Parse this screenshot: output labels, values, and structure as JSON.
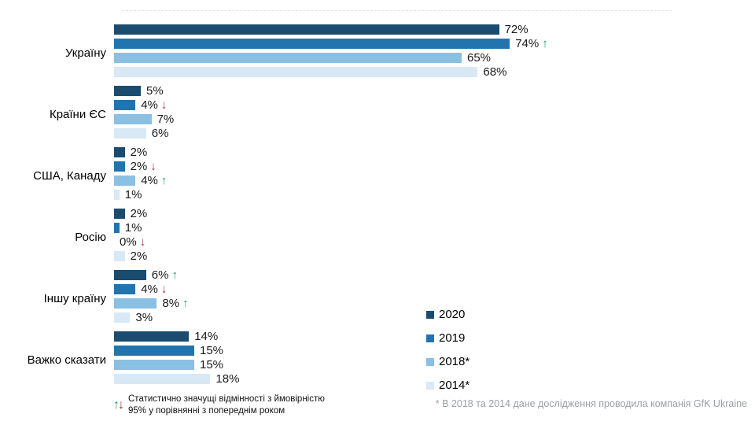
{
  "colors": {
    "y2020": "#1a4c70",
    "y2019": "#2274ae",
    "y2018": "#89c0e4",
    "y2014": "#d9e8f5",
    "up_arrow": "#14a25a",
    "down_arrow": "#9e3132",
    "footnote_gray": "#9aa0a5",
    "gridline": "#dfe4e8"
  },
  "legend": [
    {
      "label": "2020",
      "color": "#1a4c70"
    },
    {
      "label": "2019",
      "color": "#2274ae"
    },
    {
      "label": "2018*",
      "color": "#89c0e4"
    },
    {
      "label": "2014*",
      "color": "#d9e8f5"
    }
  ],
  "footnotes": {
    "significance_line1": "Статистично значущі відмінності з  ймовірністю",
    "significance_line2": "95% у порівнянні з попереднім роком",
    "source": "* В 2018 та 2014 дане дослідження проводила компанія GfK Ukraine"
  },
  "chart_data": {
    "type": "bar",
    "orientation": "horizontal",
    "categories": [
      "Україну",
      "Країни ЄС",
      "США, Канаду",
      "Росію",
      "Іншу країну",
      "Важко сказати"
    ],
    "series": [
      {
        "name": "2020",
        "color": "#1a4c70",
        "values": [
          72,
          5,
          2,
          2,
          6,
          14
        ],
        "arrows": [
          null,
          null,
          null,
          null,
          "up",
          null
        ]
      },
      {
        "name": "2019",
        "color": "#2274ae",
        "values": [
          74,
          4,
          2,
          1,
          4,
          15
        ],
        "arrows": [
          "up",
          "down",
          "down",
          null,
          "down",
          null
        ]
      },
      {
        "name": "2018*",
        "color": "#89c0e4",
        "values": [
          65,
          7,
          4,
          0,
          8,
          15
        ],
        "arrows": [
          null,
          null,
          "up",
          "down",
          "up",
          null
        ]
      },
      {
        "name": "2014*",
        "color": "#d9e8f5",
        "values": [
          68,
          6,
          1,
          2,
          3,
          18
        ],
        "arrows": [
          null,
          null,
          null,
          null,
          null,
          null
        ]
      }
    ],
    "value_suffix": "%",
    "xlim": [
      0,
      100
    ],
    "legend_position": "right-bottom",
    "grid": false
  }
}
